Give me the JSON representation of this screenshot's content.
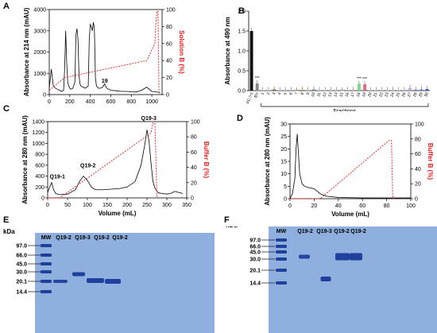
{
  "panels": {
    "A": {
      "label": "A"
    },
    "B": {
      "label": "B"
    },
    "C": {
      "label": "C"
    },
    "D": {
      "label": "D"
    },
    "E": {
      "label": "E"
    },
    "F": {
      "label": "F"
    }
  },
  "chart_data": [
    {
      "panel": "A",
      "type": "line",
      "xlabel": "Volume (mL)",
      "ylabel": "Absorbance at 214 nm (mAU)",
      "y2label": "Solution B (%)",
      "xlim": [
        0,
        1100
      ],
      "ylim": [
        0,
        4000
      ],
      "y2lim": [
        0,
        100
      ],
      "x_ticks": [
        "0",
        "200",
        "400",
        "600",
        "800",
        "1000"
      ],
      "y_ticks": [
        "0",
        "1000",
        "2000",
        "3000",
        "4000"
      ],
      "y2_ticks": [
        "0",
        "20",
        "40",
        "60",
        "80",
        "100"
      ],
      "annotations": [
        {
          "text": "19",
          "x": 510,
          "y": 480
        }
      ],
      "series": [
        {
          "x": [
            0,
            20,
            40,
            60,
            80,
            100,
            120,
            140,
            150,
            160,
            170,
            180,
            190,
            200,
            210,
            230,
            250,
            260,
            270,
            280,
            290,
            300,
            310,
            330,
            350,
            380,
            390,
            400,
            410,
            420,
            430,
            440,
            450,
            460,
            480,
            500,
            520,
            540,
            560,
            580,
            600,
            650,
            700,
            750,
            800,
            850,
            900,
            950,
            1000,
            1050,
            1080
          ],
          "y": [
            300,
            1200,
            400,
            300,
            250,
            200,
            150,
            200,
            1200,
            3000,
            1500,
            600,
            400,
            300,
            250,
            300,
            600,
            2800,
            3100,
            2600,
            900,
            500,
            400,
            350,
            300,
            400,
            2600,
            3300,
            3200,
            3000,
            3400,
            3100,
            800,
            400,
            300,
            300,
            350,
            500,
            300,
            250,
            200,
            180,
            150,
            150,
            130,
            120,
            200,
            350,
            150,
            120,
            100
          ]
        },
        {
          "x": [
            0,
            50,
            150,
            950,
            1030,
            1040,
            1050,
            1060,
            1070,
            1080
          ],
          "y2": [
            5,
            10,
            20,
            40,
            60,
            85,
            98,
            98,
            2,
            2
          ]
        }
      ]
    },
    {
      "panel": "B",
      "type": "bar",
      "xlabel": "Fractions",
      "ylabel": "Absorbance at 490 nm",
      "ylim": [
        0,
        2.0
      ],
      "y_ticks": [
        "0.0",
        "0.5",
        "1.0",
        "1.5",
        "2.0"
      ],
      "categories": [
        "PC (+)",
        "BV",
        "1",
        "2",
        "3",
        "4",
        "5",
        "6",
        "7",
        "8",
        "9",
        "10",
        "11",
        "12",
        "13",
        "14",
        "15",
        "16",
        "17",
        "18",
        "19",
        "20",
        "21",
        "22",
        "23",
        "24",
        "25",
        "26",
        "27",
        "28",
        "29",
        "30"
      ],
      "values": [
        1.5,
        0.18,
        0.01,
        0.01,
        0.03,
        0.01,
        0.01,
        0.01,
        0.0,
        0.02,
        0.01,
        0.03,
        0.01,
        0.01,
        0.01,
        0.01,
        0.0,
        0.01,
        0.02,
        0.17,
        0.16,
        0.01,
        0.01,
        0.01,
        0.01,
        0.01,
        0.01,
        0.01,
        0.06,
        0.02,
        0.03,
        0.04
      ],
      "colors": [
        "#111111",
        "#888888",
        "#bbbbbb",
        "#bbbbbb",
        "#8a6a30",
        "#bbbbbb",
        "#bbbbbb",
        "#bbbbbb",
        "#bbbbbb",
        "#c7902a",
        "#bbbbbb",
        "#6b8ea8",
        "#bbbbbb",
        "#bbbbbb",
        "#bbbbbb",
        "#bbbbbb",
        "#bbbbbb",
        "#bbbbbb",
        "#bbbbbb",
        "#7dd68b",
        "#e06a8a",
        "#bbbbbb",
        "#bbbbbb",
        "#bbbbbb",
        "#bbbbbb",
        "#bbbbbb",
        "#bbbbbb",
        "#bbbbbb",
        "#c8a0e0",
        "#5a6ad0",
        "#6a7ad8",
        "#4a5ac8"
      ],
      "star_marks": {
        "1": "***",
        "19": "***",
        "20": "***"
      }
    },
    {
      "panel": "C",
      "type": "line",
      "xlabel": "Volume (mL)",
      "ylabel": "Absorbance at 280 nm (mAU)",
      "y2label": "Buffer B (%)",
      "xlim": [
        0,
        350
      ],
      "ylim": [
        0,
        1400
      ],
      "y2lim": [
        0,
        100
      ],
      "x_ticks": [
        "0",
        "50",
        "100",
        "150",
        "200",
        "250",
        "300",
        "350"
      ],
      "y_ticks": [
        "0",
        "200",
        "400",
        "600",
        "800",
        "1000",
        "1200",
        "1400"
      ],
      "y2_ticks": [
        "0",
        "20",
        "40",
        "60",
        "80",
        "100"
      ],
      "annotations": [
        {
          "text": "Q19-1",
          "x": 5,
          "y": 330
        },
        {
          "text": "Q19-2",
          "x": 82,
          "y": 530
        },
        {
          "text": "Q19-3",
          "x": 235,
          "y": 1400
        }
      ],
      "series": [
        {
          "x": [
            0,
            5,
            10,
            15,
            20,
            30,
            50,
            70,
            80,
            90,
            100,
            110,
            120,
            140,
            160,
            180,
            200,
            220,
            235,
            245,
            250,
            255,
            260,
            265,
            270,
            275,
            280,
            290,
            300,
            310,
            320,
            330,
            340
          ],
          "y": [
            100,
            200,
            280,
            150,
            80,
            60,
            70,
            150,
            300,
            400,
            320,
            200,
            150,
            150,
            160,
            170,
            200,
            300,
            600,
            1000,
            1250,
            1050,
            650,
            300,
            180,
            120,
            90,
            80,
            70,
            80,
            120,
            100,
            80
          ]
        },
        {
          "x": [
            0,
            30,
            260,
            265,
            270,
            275,
            280
          ],
          "y2": [
            0,
            0,
            85,
            98,
            98,
            2,
            2
          ]
        }
      ]
    },
    {
      "panel": "D",
      "type": "line",
      "xlabel": "Volume (mL)",
      "ylabel": "Absorbance at 280 nm (mAU)",
      "y2label": "Buffer B (%)",
      "xlim": [
        0,
        100
      ],
      "ylim": [
        0,
        30
      ],
      "y2lim": [
        0,
        100
      ],
      "x_ticks": [
        "0",
        "20",
        "40",
        "60",
        "80",
        "100"
      ],
      "y_ticks": [
        "0",
        "5",
        "10",
        "15",
        "20",
        "25",
        "30"
      ],
      "y2_ticks": [
        "0",
        "20",
        "40",
        "60",
        "80",
        "100"
      ],
      "series": [
        {
          "x": [
            0,
            2,
            4,
            5,
            6,
            7,
            8,
            10,
            12,
            15,
            20,
            25,
            30,
            40,
            60,
            80,
            100
          ],
          "y": [
            0,
            2,
            8,
            20,
            26,
            18,
            10,
            6,
            5,
            4.5,
            4,
            2,
            1,
            0.5,
            0.3,
            0.3,
            0.3
          ]
        },
        {
          "x": [
            0,
            25,
            82,
            84,
            85,
            86,
            88
          ],
          "y2": [
            0,
            0,
            78,
            78,
            5,
            0,
            0
          ]
        }
      ]
    }
  ],
  "gels": {
    "E": {
      "kda_label": "kDa",
      "lane_labels": [
        "MW",
        "Q19-2",
        "Q19-3",
        "Q19-2",
        "Q19-2"
      ],
      "markers": [
        "97.0",
        "66.0",
        "45.0",
        "30.0",
        "20.1",
        "14.4"
      ]
    },
    "F": {
      "kda_label": "kDa",
      "lane_labels": [
        "MW",
        "Q19-2",
        "Q19-3",
        "Q19-2",
        "Q19-2"
      ],
      "markers": [
        "97.0",
        "66.0",
        "45.0",
        "30.0",
        "20.1",
        "14.4"
      ]
    }
  }
}
